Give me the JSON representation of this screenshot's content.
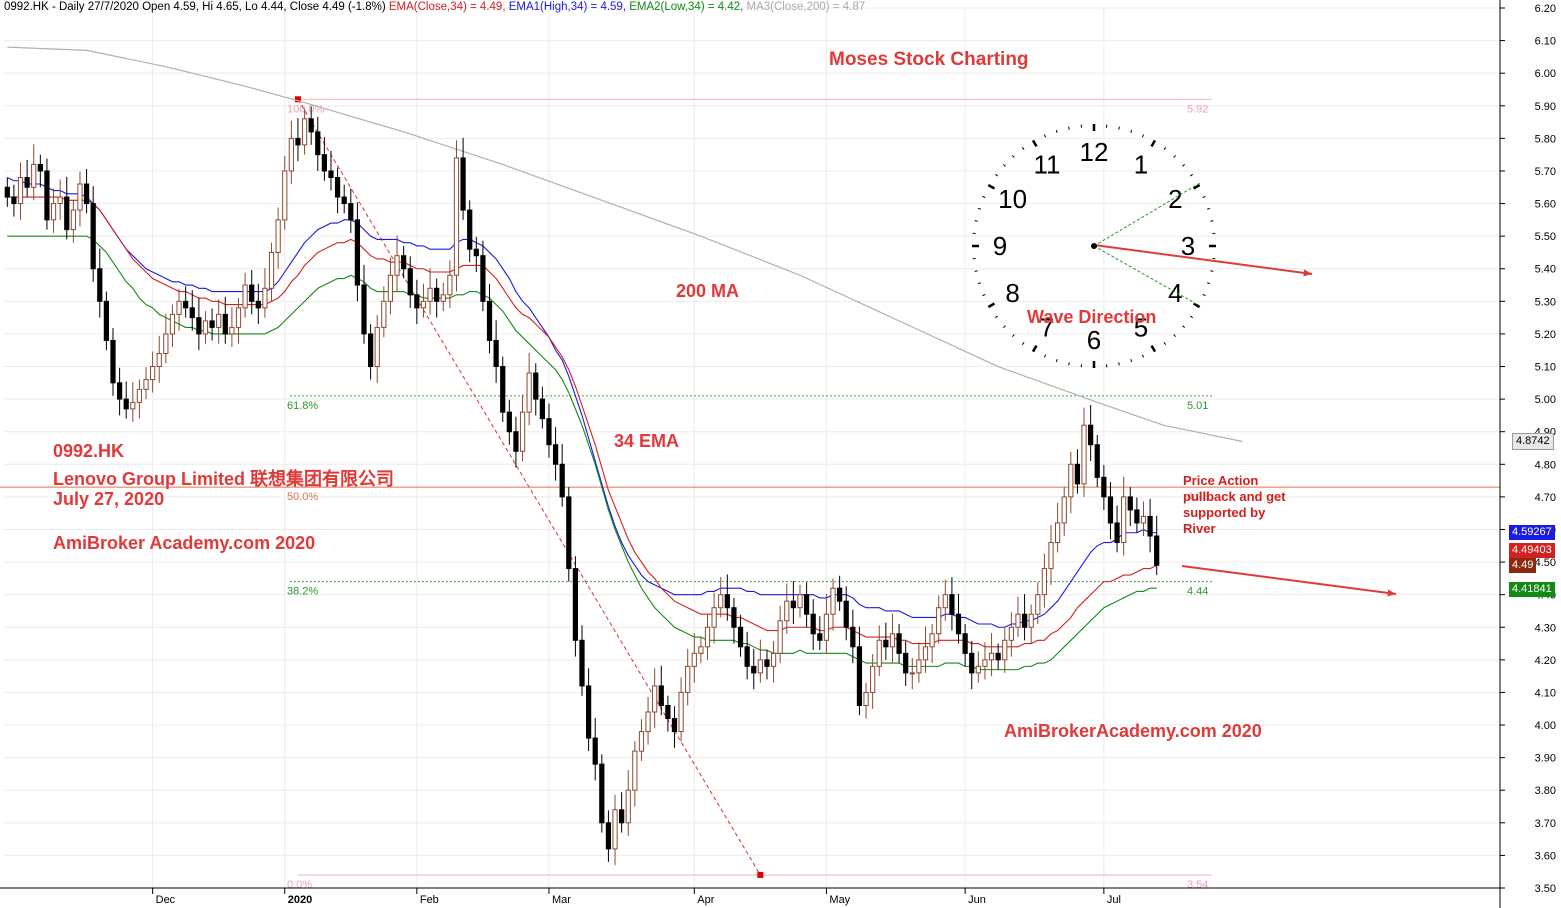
{
  "header": {
    "symbol_info": "0992.HK - Daily 27/7/2020 Open 4.59, Hi 4.65, Lo 4.44, Close 4.49 (-1.8%)",
    "ema_close": "EMA(Close,34) = 4.49,",
    "ema_high": "EMA1(High,34) = 4.59,",
    "ema_low": "EMA2(Low,34) = 4.42,",
    "ma_close": "MA3(Close,200) = 4.87"
  },
  "annotations": {
    "title": "Moses Stock Charting",
    "ma_label": "200 MA",
    "ema_label": "34 EMA",
    "symbol": "0992.HK",
    "company": "Lenovo Group Limited 联想集团有限公司",
    "date": "July 27, 2020",
    "watermark_left": "AmiBroker Academy.com  2020",
    "watermark_right": "AmiBrokerAcademy.com 2020",
    "wave_direction": "Wave Direction",
    "price_action_note": "Price Action pullback and get supported by River"
  },
  "colors": {
    "ema_close": "#d42020",
    "ema_high": "#1a1ae0",
    "ema_low": "#138a13",
    "ma200": "#b0b0b0",
    "fib": "#f0a0b0",
    "fib_green": "#2a9a2a",
    "annotation_red": "#e03a3a"
  },
  "price_tags": {
    "ma": "4.8742",
    "ema_high": "4.59267",
    "ema_close": "4.49403",
    "close": "4.49",
    "ema_low": "4.41841"
  },
  "clock": {
    "numbers": [
      "12",
      "1",
      "2",
      "3",
      "4",
      "5",
      "6",
      "7",
      "8",
      "9",
      "10",
      "11"
    ]
  },
  "chart_data": {
    "type": "candlestick",
    "ylim": [
      3.5,
      6.2
    ],
    "y_ticks": [
      "3.50",
      "3.60",
      "3.70",
      "3.80",
      "3.90",
      "4.00",
      "4.10",
      "4.20",
      "4.30",
      "4.40",
      "4.50",
      "4.60",
      "4.70",
      "4.80",
      "4.90",
      "5.00",
      "5.10",
      "5.20",
      "5.30",
      "5.40",
      "5.50",
      "5.60",
      "5.70",
      "5.80",
      "5.90",
      "6.00",
      "6.10",
      "6.20"
    ],
    "x_labels": [
      {
        "label": "Dec",
        "bar": 22
      },
      {
        "label": "2020",
        "bar": 42
      },
      {
        "label": "Feb",
        "bar": 62
      },
      {
        "label": "Mar",
        "bar": 82
      },
      {
        "label": "Apr",
        "bar": 104
      },
      {
        "label": "May",
        "bar": 124
      },
      {
        "label": "Jun",
        "bar": 145
      },
      {
        "label": "Jul",
        "bar": 166
      }
    ],
    "fib_levels": [
      {
        "label": "100.0%",
        "value": 5.92,
        "right": "5.92"
      },
      {
        "label": "61.8%",
        "value": 5.01,
        "right": "5.01"
      },
      {
        "label": "50.0%",
        "value": 4.73,
        "right": "4.73"
      },
      {
        "label": "38.2%",
        "value": 4.44,
        "right": "4.44"
      },
      {
        "label": "0.0%",
        "value": 3.54,
        "right": "3.54"
      }
    ],
    "fib_diag": {
      "from": [
        44,
        5.92
      ],
      "to": [
        114,
        3.54
      ]
    },
    "closes": [
      5.62,
      5.6,
      5.68,
      5.65,
      5.72,
      5.7,
      5.55,
      5.6,
      5.62,
      5.52,
      5.58,
      5.66,
      5.6,
      5.4,
      5.3,
      5.18,
      5.05,
      5.0,
      4.97,
      4.99,
      5.03,
      5.06,
      5.1,
      5.14,
      5.2,
      5.26,
      5.3,
      5.28,
      5.25,
      5.2,
      5.24,
      5.22,
      5.26,
      5.2,
      5.22,
      5.28,
      5.35,
      5.3,
      5.28,
      5.34,
      5.45,
      5.55,
      5.7,
      5.8,
      5.78,
      5.86,
      5.82,
      5.75,
      5.7,
      5.68,
      5.62,
      5.6,
      5.55,
      5.35,
      5.2,
      5.1,
      5.22,
      5.3,
      5.38,
      5.44,
      5.4,
      5.32,
      5.28,
      5.3,
      5.34,
      5.3,
      5.32,
      5.38,
      5.74,
      5.58,
      5.46,
      5.44,
      5.3,
      5.18,
      5.1,
      4.96,
      4.9,
      4.84,
      4.96,
      5.08,
      5.0,
      4.94,
      4.86,
      4.8,
      4.7,
      4.48,
      4.26,
      4.12,
      3.96,
      3.88,
      3.7,
      3.62,
      3.74,
      3.7,
      3.8,
      3.92,
      3.98,
      4.04,
      4.12,
      4.06,
      4.02,
      3.98,
      4.1,
      4.18,
      4.22,
      4.24,
      4.3,
      4.36,
      4.4,
      4.36,
      4.3,
      4.24,
      4.18,
      4.16,
      4.2,
      4.18,
      4.22,
      4.32,
      4.38,
      4.36,
      4.4,
      4.34,
      4.28,
      4.26,
      4.34,
      4.42,
      4.38,
      4.3,
      4.24,
      4.06,
      4.1,
      4.18,
      4.26,
      4.24,
      4.28,
      4.22,
      4.16,
      4.16,
      4.2,
      4.24,
      4.28,
      4.36,
      4.4,
      4.34,
      4.28,
      4.22,
      4.16,
      4.18,
      4.2,
      4.22,
      4.2,
      4.26,
      4.3,
      4.34,
      4.3,
      4.34,
      4.4,
      4.48,
      4.56,
      4.62,
      4.7,
      4.8,
      4.74,
      4.92,
      4.86,
      4.76,
      4.7,
      4.62,
      4.56,
      4.7,
      4.66,
      4.62,
      4.64,
      4.58,
      4.49
    ],
    "ema_high": [
      5.68,
      5.67,
      5.67,
      5.66,
      5.66,
      5.66,
      5.65,
      5.64,
      5.64,
      5.63,
      5.63,
      5.63,
      5.62,
      5.6,
      5.58,
      5.55,
      5.52,
      5.49,
      5.46,
      5.44,
      5.42,
      5.4,
      5.39,
      5.38,
      5.37,
      5.36,
      5.36,
      5.35,
      5.35,
      5.34,
      5.34,
      5.33,
      5.33,
      5.33,
      5.33,
      5.33,
      5.33,
      5.33,
      5.33,
      5.33,
      5.34,
      5.36,
      5.39,
      5.42,
      5.45,
      5.48,
      5.5,
      5.52,
      5.53,
      5.54,
      5.54,
      5.55,
      5.55,
      5.54,
      5.52,
      5.5,
      5.49,
      5.49,
      5.49,
      5.49,
      5.48,
      5.48,
      5.47,
      5.47,
      5.46,
      5.46,
      5.46,
      5.46,
      5.48,
      5.49,
      5.49,
      5.48,
      5.47,
      5.45,
      5.43,
      5.4,
      5.37,
      5.33,
      5.3,
      5.28,
      5.25,
      5.22,
      5.19,
      5.15,
      5.12,
      5.07,
      5.01,
      4.95,
      4.88,
      4.81,
      4.74,
      4.67,
      4.61,
      4.56,
      4.52,
      4.49,
      4.46,
      4.44,
      4.43,
      4.42,
      4.41,
      4.4,
      4.4,
      4.4,
      4.4,
      4.4,
      4.41,
      4.41,
      4.42,
      4.42,
      4.42,
      4.42,
      4.41,
      4.41,
      4.4,
      4.4,
      4.4,
      4.4,
      4.4,
      4.4,
      4.4,
      4.4,
      4.4,
      4.39,
      4.39,
      4.4,
      4.4,
      4.4,
      4.39,
      4.37,
      4.36,
      4.36,
      4.36,
      4.35,
      4.35,
      4.35,
      4.34,
      4.33,
      4.33,
      4.33,
      4.33,
      4.33,
      4.34,
      4.34,
      4.33,
      4.33,
      4.32,
      4.31,
      4.31,
      4.31,
      4.3,
      4.3,
      4.31,
      4.31,
      4.32,
      4.32,
      4.33,
      4.34,
      4.36,
      4.38,
      4.41,
      4.44,
      4.47,
      4.5,
      4.53,
      4.55,
      4.56,
      4.56,
      4.57,
      4.59,
      4.59,
      4.59,
      4.6,
      4.59,
      4.59
    ],
    "ema_close": [
      5.62,
      5.62,
      5.62,
      5.62,
      5.62,
      5.62,
      5.62,
      5.62,
      5.62,
      5.61,
      5.61,
      5.61,
      5.61,
      5.6,
      5.58,
      5.55,
      5.52,
      5.49,
      5.46,
      5.43,
      5.41,
      5.39,
      5.37,
      5.36,
      5.35,
      5.34,
      5.33,
      5.33,
      5.32,
      5.31,
      5.31,
      5.3,
      5.3,
      5.29,
      5.29,
      5.29,
      5.29,
      5.29,
      5.29,
      5.29,
      5.3,
      5.31,
      5.33,
      5.36,
      5.38,
      5.41,
      5.43,
      5.45,
      5.46,
      5.47,
      5.48,
      5.48,
      5.49,
      5.48,
      5.46,
      5.44,
      5.43,
      5.43,
      5.42,
      5.42,
      5.42,
      5.41,
      5.4,
      5.4,
      5.39,
      5.39,
      5.39,
      5.39,
      5.4,
      5.41,
      5.41,
      5.41,
      5.41,
      5.39,
      5.37,
      5.34,
      5.31,
      5.28,
      5.26,
      5.25,
      5.23,
      5.21,
      5.19,
      5.16,
      5.13,
      5.09,
      5.04,
      4.98,
      4.92,
      4.86,
      4.79,
      4.72,
      4.67,
      4.62,
      4.57,
      4.53,
      4.5,
      4.47,
      4.45,
      4.42,
      4.4,
      4.38,
      4.37,
      4.36,
      4.35,
      4.34,
      4.34,
      4.34,
      4.34,
      4.34,
      4.33,
      4.33,
      4.32,
      4.31,
      4.3,
      4.29,
      4.29,
      4.29,
      4.3,
      4.3,
      4.3,
      4.3,
      4.3,
      4.29,
      4.29,
      4.3,
      4.3,
      4.3,
      4.29,
      4.28,
      4.27,
      4.27,
      4.27,
      4.27,
      4.27,
      4.26,
      4.26,
      4.25,
      4.25,
      4.25,
      4.25,
      4.26,
      4.26,
      4.26,
      4.26,
      4.26,
      4.25,
      4.25,
      4.24,
      4.24,
      4.24,
      4.24,
      4.24,
      4.24,
      4.25,
      4.25,
      4.26,
      4.26,
      4.28,
      4.29,
      4.31,
      4.33,
      4.36,
      4.38,
      4.4,
      4.42,
      4.44,
      4.44,
      4.45,
      4.46,
      4.46,
      4.47,
      4.48,
      4.48,
      4.49
    ],
    "ema_low": [
      5.5,
      5.5,
      5.5,
      5.5,
      5.5,
      5.5,
      5.5,
      5.5,
      5.5,
      5.5,
      5.5,
      5.5,
      5.5,
      5.49,
      5.47,
      5.45,
      5.42,
      5.39,
      5.36,
      5.34,
      5.31,
      5.29,
      5.28,
      5.26,
      5.25,
      5.24,
      5.23,
      5.22,
      5.22,
      5.21,
      5.21,
      5.2,
      5.2,
      5.2,
      5.2,
      5.2,
      5.2,
      5.2,
      5.2,
      5.2,
      5.21,
      5.22,
      5.24,
      5.26,
      5.28,
      5.3,
      5.32,
      5.34,
      5.35,
      5.36,
      5.37,
      5.37,
      5.38,
      5.37,
      5.36,
      5.34,
      5.33,
      5.33,
      5.33,
      5.33,
      5.33,
      5.32,
      5.32,
      5.31,
      5.31,
      5.31,
      5.31,
      5.31,
      5.32,
      5.32,
      5.33,
      5.33,
      5.32,
      5.31,
      5.29,
      5.27,
      5.24,
      5.21,
      5.19,
      5.17,
      5.15,
      5.13,
      5.11,
      5.09,
      5.06,
      5.02,
      4.97,
      4.92,
      4.86,
      4.8,
      4.73,
      4.66,
      4.6,
      4.55,
      4.5,
      4.46,
      4.42,
      4.39,
      4.36,
      4.34,
      4.32,
      4.3,
      4.29,
      4.28,
      4.27,
      4.27,
      4.26,
      4.26,
      4.26,
      4.26,
      4.26,
      4.25,
      4.25,
      4.24,
      4.23,
      4.23,
      4.22,
      4.22,
      4.22,
      4.22,
      4.23,
      4.22,
      4.22,
      4.22,
      4.22,
      4.22,
      4.22,
      4.22,
      4.21,
      4.2,
      4.19,
      4.19,
      4.19,
      4.19,
      4.19,
      4.19,
      4.18,
      4.18,
      4.18,
      4.18,
      4.18,
      4.18,
      4.19,
      4.19,
      4.19,
      4.18,
      4.18,
      4.17,
      4.17,
      4.17,
      4.17,
      4.17,
      4.17,
      4.17,
      4.18,
      4.18,
      4.19,
      4.19,
      4.2,
      4.22,
      4.24,
      4.26,
      4.28,
      4.3,
      4.32,
      4.34,
      4.36,
      4.37,
      4.38,
      4.39,
      4.4,
      4.41,
      4.41,
      4.42,
      4.42
    ],
    "ma200": [
      {
        "bar": 0,
        "v": 6.08
      },
      {
        "bar": 12,
        "v": 6.07
      },
      {
        "bar": 24,
        "v": 6.02
      },
      {
        "bar": 36,
        "v": 5.96
      },
      {
        "bar": 45,
        "v": 5.91
      },
      {
        "bar": 60,
        "v": 5.82
      },
      {
        "bar": 75,
        "v": 5.72
      },
      {
        "bar": 90,
        "v": 5.61
      },
      {
        "bar": 105,
        "v": 5.5
      },
      {
        "bar": 120,
        "v": 5.38
      },
      {
        "bar": 135,
        "v": 5.24
      },
      {
        "bar": 150,
        "v": 5.1
      },
      {
        "bar": 165,
        "v": 4.99
      },
      {
        "bar": 175,
        "v": 4.92
      },
      {
        "bar": 187,
        "v": 4.87
      }
    ]
  }
}
